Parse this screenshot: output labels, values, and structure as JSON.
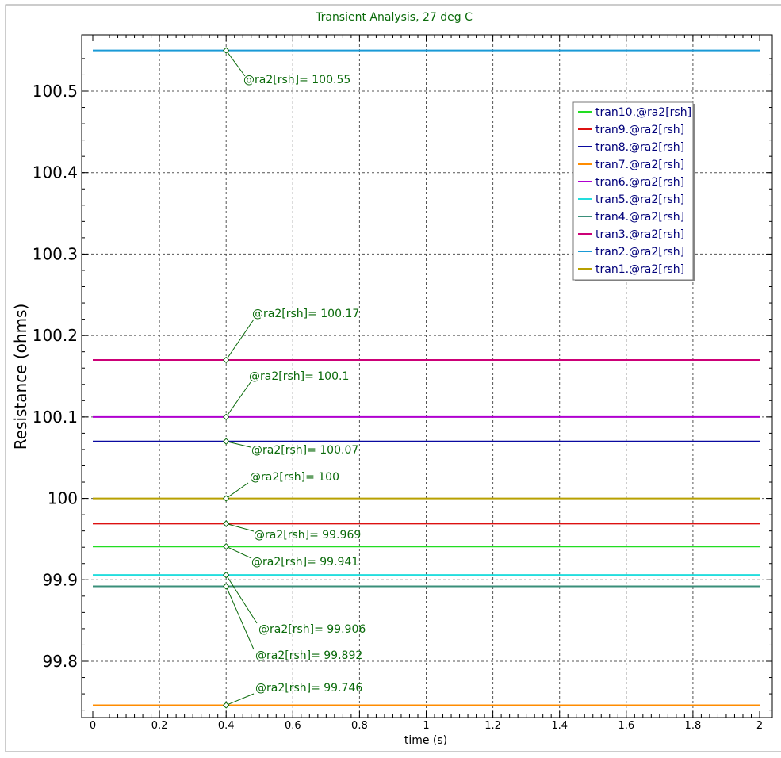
{
  "chart_data": {
    "type": "line",
    "title": "Transient Analysis, 27 deg C",
    "xlabel": "time (s)",
    "ylabel": "Resistance (ohms)",
    "xlim": [
      0,
      2
    ],
    "ylim": [
      99.74,
      100.56
    ],
    "x_ticks": [
      "0",
      "0.2",
      "0.4",
      "0.6",
      "0.8",
      "1",
      "1.2",
      "1.4",
      "1.6",
      "1.8",
      "2"
    ],
    "y_ticks": [
      "99.8",
      "99.9",
      "100",
      "100.1",
      "100.2",
      "100.3",
      "100.4",
      "100.5"
    ],
    "grid": true,
    "legend_position": "top-right",
    "series": [
      {
        "name": "tran10.@ra2[rsh]",
        "color": "#22dd22",
        "x": [
          0,
          2
        ],
        "y": [
          99.941,
          99.941
        ]
      },
      {
        "name": "tran9.@ra2[rsh]",
        "color": "#dd1111",
        "x": [
          0,
          2
        ],
        "y": [
          99.969,
          99.969
        ]
      },
      {
        "name": "tran8.@ra2[rsh]",
        "color": "#0a0aa0",
        "x": [
          0,
          2
        ],
        "y": [
          100.07,
          100.07
        ]
      },
      {
        "name": "tran7.@ra2[rsh]",
        "color": "#ff8c00",
        "x": [
          0,
          2
        ],
        "y": [
          99.746,
          99.746
        ]
      },
      {
        "name": "tran6.@ra2[rsh]",
        "color": "#b000d0",
        "x": [
          0,
          2
        ],
        "y": [
          100.1,
          100.1
        ]
      },
      {
        "name": "tran5.@ra2[rsh]",
        "color": "#22dddd",
        "x": [
          0,
          2
        ],
        "y": [
          99.906,
          99.906
        ]
      },
      {
        "name": "tran4.@ra2[rsh]",
        "color": "#3a8f7a",
        "x": [
          0,
          2
        ],
        "y": [
          99.892,
          99.892
        ]
      },
      {
        "name": "tran3.@ra2[rsh]",
        "color": "#cc0077",
        "x": [
          0,
          2
        ],
        "y": [
          100.17,
          100.17
        ]
      },
      {
        "name": "tran2.@ra2[rsh]",
        "color": "#1a9ad6",
        "x": [
          0,
          2
        ],
        "y": [
          100.55,
          100.55
        ]
      },
      {
        "name": "tran1.@ra2[rsh]",
        "color": "#b8a000",
        "x": [
          0,
          2
        ],
        "y": [
          100,
          100
        ]
      }
    ],
    "annotations": [
      {
        "text": "@ra2[rsh]= 100.55",
        "x": 0.4,
        "y": 100.55
      },
      {
        "text": "@ra2[rsh]= 100.17",
        "x": 0.4,
        "y": 100.17
      },
      {
        "text": "@ra2[rsh]= 100.1",
        "x": 0.4,
        "y": 100.1
      },
      {
        "text": "@ra2[rsh]= 100.07",
        "x": 0.4,
        "y": 100.07
      },
      {
        "text": "@ra2[rsh]= 100",
        "x": 0.4,
        "y": 100
      },
      {
        "text": "@ra2[rsh]= 99.969",
        "x": 0.4,
        "y": 99.969
      },
      {
        "text": "@ra2[rsh]= 99.941",
        "x": 0.4,
        "y": 99.941
      },
      {
        "text": "@ra2[rsh]= 99.906",
        "x": 0.4,
        "y": 99.906
      },
      {
        "text": "@ra2[rsh]= 99.892",
        "x": 0.4,
        "y": 99.892
      },
      {
        "text": "@ra2[rsh]= 99.746",
        "x": 0.4,
        "y": 99.746
      }
    ],
    "colors": {
      "title": "#0a6a0a",
      "annotation": "#0a6a0a",
      "legend_text": "#00007a",
      "grid": "#555555",
      "axis": "#000000"
    }
  }
}
